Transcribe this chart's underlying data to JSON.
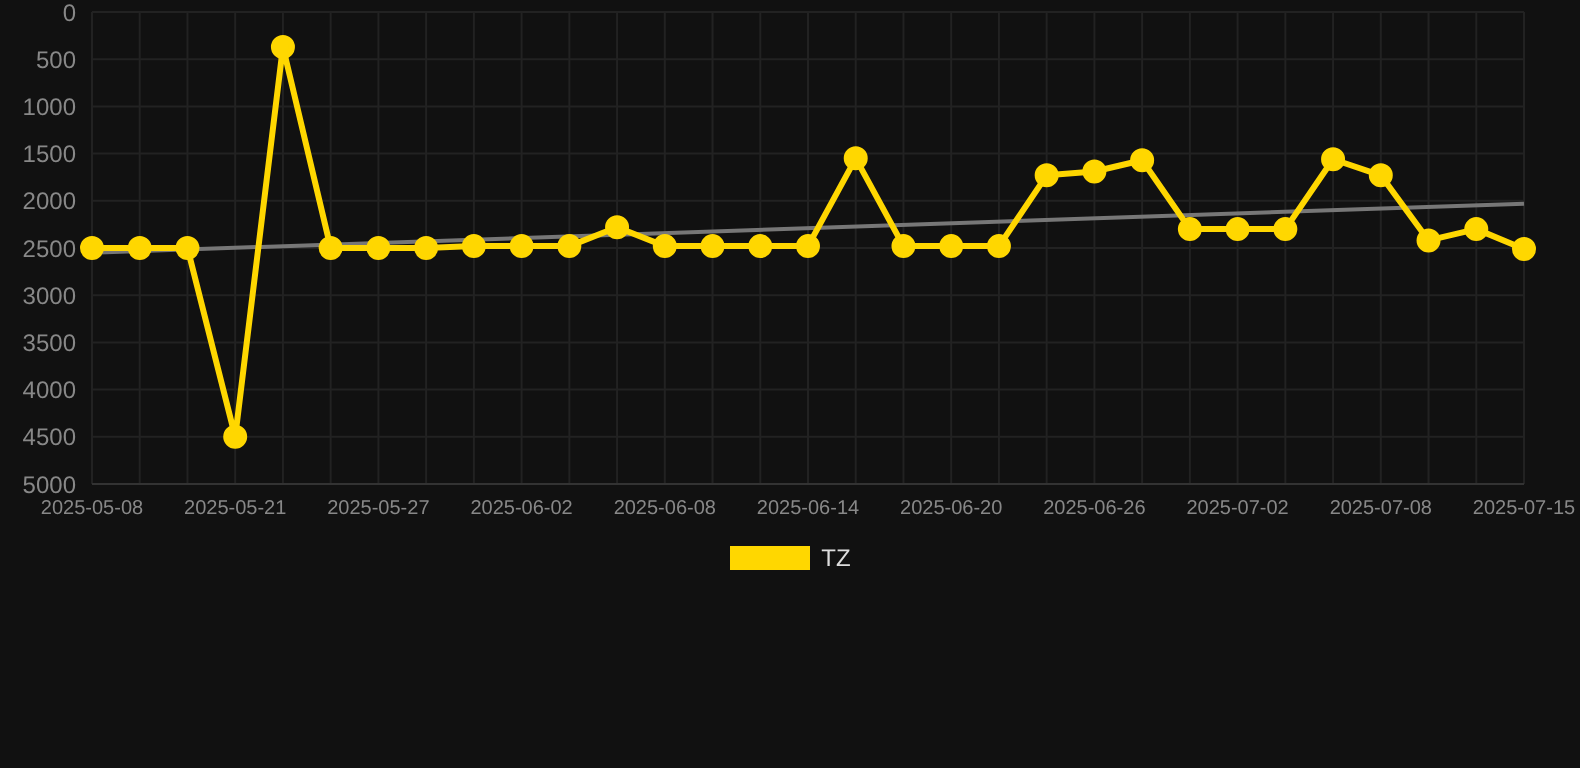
{
  "chart_data": {
    "type": "line",
    "categories": [
      "2025-05-08",
      null,
      null,
      "2025-05-21",
      null,
      null,
      "2025-05-27",
      null,
      null,
      "2025-06-02",
      null,
      null,
      "2025-06-08",
      null,
      null,
      "2025-06-14",
      null,
      null,
      "2025-06-20",
      null,
      null,
      "2025-06-26",
      null,
      null,
      "2025-07-02",
      null,
      null,
      "2025-07-08",
      null,
      null,
      "2025-07-15"
    ],
    "series": [
      {
        "name": "TZ",
        "color": "#ffd700",
        "marker": "circle",
        "values": [
          2500,
          2500,
          2500,
          4500,
          370,
          2500,
          2500,
          2500,
          2480,
          2480,
          2480,
          2280,
          2480,
          2480,
          2480,
          2480,
          1550,
          2480,
          2480,
          2480,
          1730,
          1690,
          1570,
          2300,
          2300,
          2300,
          1560,
          1730,
          2420,
          2300,
          2510
        ]
      },
      {
        "color": "#777777",
        "marker": "none",
        "values": [
          2550,
          null,
          null,
          null,
          null,
          null,
          null,
          null,
          null,
          null,
          null,
          null,
          null,
          null,
          null,
          null,
          null,
          null,
          null,
          null,
          null,
          null,
          null,
          null,
          null,
          null,
          null,
          null,
          null,
          null,
          2030
        ]
      }
    ],
    "ylim": [
      5000,
      0
    ],
    "yticks": [
      0,
      500,
      1000,
      1500,
      2000,
      2500,
      3000,
      3500,
      4000,
      4500,
      5000
    ],
    "grid": true,
    "legend": "bottom"
  }
}
